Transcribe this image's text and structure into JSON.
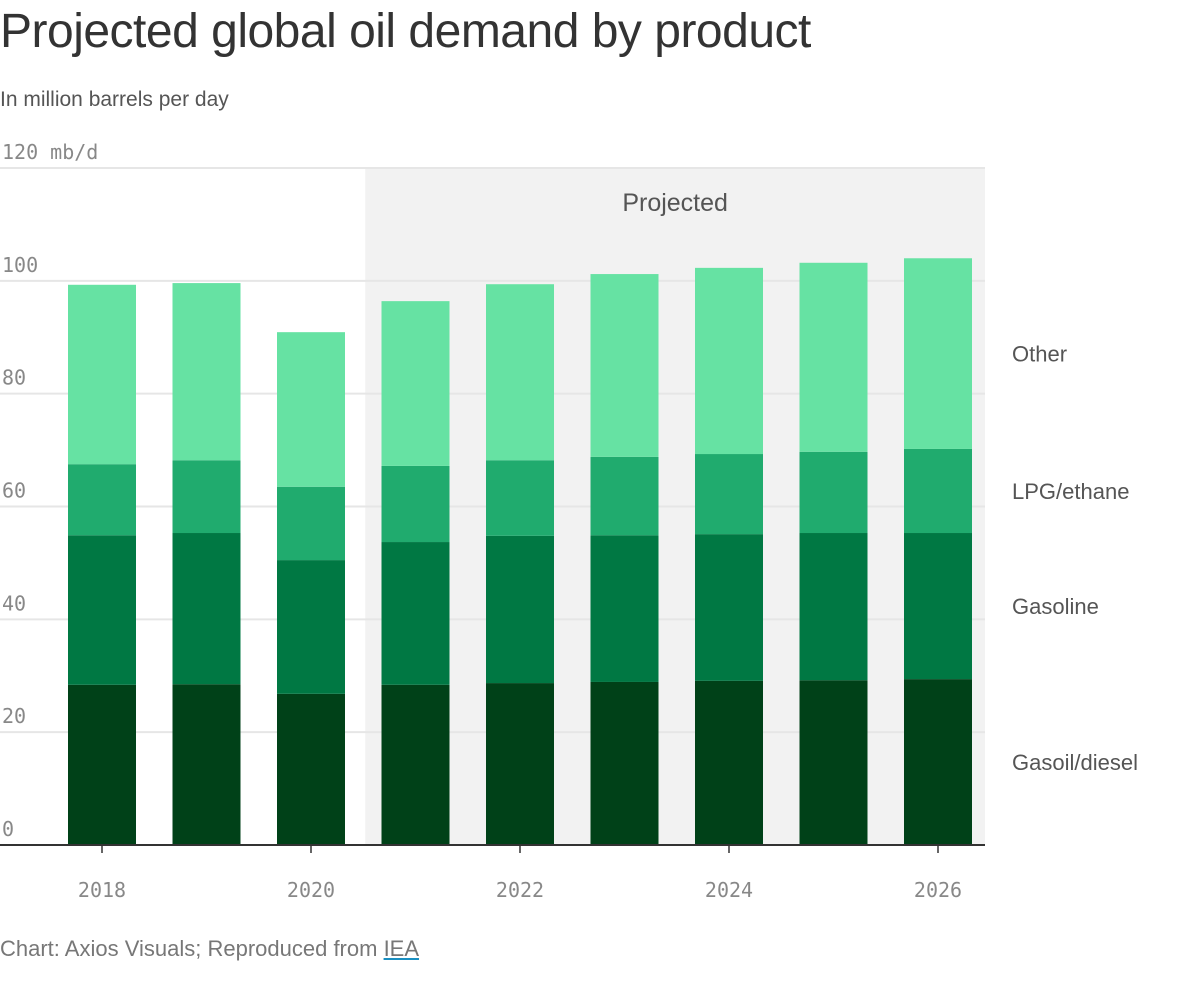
{
  "title": "Projected global oil demand by product",
  "subtitle": "In million barrels per day",
  "source": {
    "text": "Chart: Axios Visuals; Reproduced from ",
    "link": "IEA"
  },
  "chart_data": {
    "type": "bar",
    "stacked": true,
    "categories": [
      "2018",
      "2019",
      "2020",
      "2021",
      "2022",
      "2023",
      "2024",
      "2025",
      "2026"
    ],
    "series": [
      {
        "name": "Gasoil/diesel",
        "color": "#004118",
        "values": [
          28.4,
          28.5,
          26.8,
          28.4,
          28.7,
          28.9,
          29.1,
          29.2,
          29.4
        ]
      },
      {
        "name": "Gasoline",
        "color": "#007843",
        "values": [
          26.5,
          26.8,
          23.7,
          25.3,
          26.1,
          26.0,
          26.0,
          26.1,
          25.9
        ]
      },
      {
        "name": "LPG/ethane",
        "color": "#20ab6e",
        "values": [
          12.6,
          12.9,
          13.0,
          13.5,
          13.4,
          13.9,
          14.2,
          14.4,
          14.9
        ]
      },
      {
        "name": "Other",
        "color": "#66e2a3",
        "values": [
          31.8,
          31.4,
          27.4,
          29.2,
          31.2,
          32.4,
          33.0,
          33.5,
          33.8
        ]
      }
    ],
    "ylim": [
      0,
      120
    ],
    "yticks": [
      "0",
      "20",
      "40",
      "60",
      "80",
      "100",
      "120 mb/d"
    ],
    "xticks": [
      "2018",
      "2020",
      "2022",
      "2024",
      "2026"
    ],
    "annotation": "Projected",
    "projected_from": "2021",
    "grid": true,
    "legend": "right, inline"
  }
}
